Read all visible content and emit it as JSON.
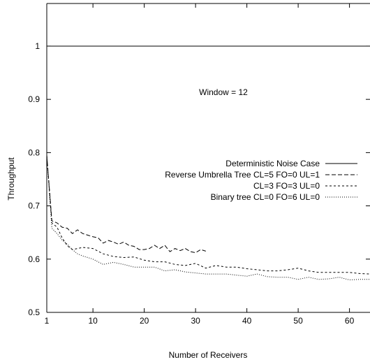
{
  "chart_data": {
    "type": "line",
    "title": "",
    "xlabel": "Number of Receivers",
    "ylabel": "Throughput",
    "xlim": [
      1,
      64
    ],
    "ylim": [
      0.5,
      1.08
    ],
    "xticks": [
      1,
      10,
      20,
      30,
      40,
      50,
      60
    ],
    "yticks": [
      0.5,
      0.6,
      0.7,
      0.8,
      0.9,
      1
    ],
    "grid": false,
    "legend_position": "center-right",
    "annotation": "Window = 12",
    "series": [
      {
        "name": "Deterministic Noise Case",
        "style": "solid",
        "x": [
          1,
          64
        ],
        "y": [
          1,
          1
        ]
      },
      {
        "name": "Reverse Umbrella Tree CL=5 FO=0 UL=1",
        "style": "dashed",
        "x": [
          1,
          2,
          3,
          4,
          5,
          6,
          7,
          8,
          9,
          10,
          11,
          12,
          13,
          14,
          15,
          16,
          17,
          18,
          19,
          20,
          21,
          22,
          23,
          24,
          25,
          26,
          27,
          28,
          29,
          30,
          31,
          32
        ],
        "y": [
          0.795,
          0.672,
          0.668,
          0.66,
          0.658,
          0.648,
          0.655,
          0.648,
          0.645,
          0.642,
          0.64,
          0.63,
          0.635,
          0.632,
          0.628,
          0.632,
          0.626,
          0.624,
          0.618,
          0.618,
          0.62,
          0.626,
          0.62,
          0.626,
          0.614,
          0.62,
          0.616,
          0.62,
          0.614,
          0.612,
          0.618,
          0.615
        ]
      },
      {
        "name": "CL=3 FO=3 UL=0",
        "style": "short-dashed",
        "x": [
          1,
          2,
          3,
          4,
          5,
          6,
          7,
          8,
          10,
          12,
          14,
          16,
          18,
          20,
          22,
          24,
          26,
          28,
          30,
          32,
          34,
          36,
          38,
          40,
          42,
          44,
          46,
          48,
          50,
          52,
          54,
          56,
          58,
          60,
          62,
          64
        ],
        "y": [
          0.795,
          0.668,
          0.66,
          0.64,
          0.625,
          0.618,
          0.62,
          0.622,
          0.62,
          0.61,
          0.605,
          0.603,
          0.604,
          0.598,
          0.595,
          0.595,
          0.59,
          0.588,
          0.592,
          0.583,
          0.588,
          0.585,
          0.585,
          0.582,
          0.58,
          0.578,
          0.578,
          0.58,
          0.583,
          0.578,
          0.575,
          0.575,
          0.575,
          0.575,
          0.573,
          0.572
        ]
      },
      {
        "name": "Binary tree CL=0 FO=6 UL=0",
        "style": "dotted",
        "x": [
          1,
          2,
          3,
          4,
          5,
          6,
          7,
          8,
          10,
          12,
          14,
          16,
          18,
          20,
          22,
          24,
          26,
          28,
          30,
          32,
          34,
          36,
          38,
          40,
          42,
          44,
          46,
          48,
          50,
          52,
          54,
          56,
          58,
          60,
          62,
          64
        ],
        "y": [
          0.795,
          0.658,
          0.648,
          0.636,
          0.628,
          0.618,
          0.61,
          0.606,
          0.6,
          0.59,
          0.594,
          0.59,
          0.585,
          0.585,
          0.585,
          0.578,
          0.58,
          0.576,
          0.574,
          0.572,
          0.572,
          0.572,
          0.57,
          0.568,
          0.572,
          0.567,
          0.566,
          0.566,
          0.562,
          0.566,
          0.562,
          0.563,
          0.566,
          0.561,
          0.562,
          0.562
        ]
      }
    ]
  }
}
